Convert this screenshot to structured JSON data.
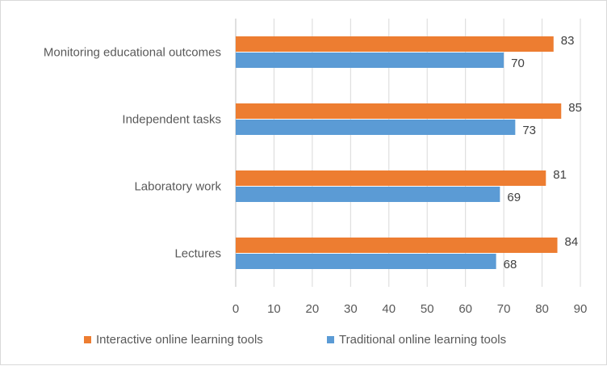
{
  "chart_data": {
    "type": "bar",
    "orientation": "horizontal",
    "title": "",
    "xlabel": "",
    "ylabel": "",
    "categories": [
      "Monitoring educational outcomes",
      "Independent tasks",
      "Laboratory work",
      "Lectures"
    ],
    "series": [
      {
        "name": "Interactive online learning tools",
        "color": "#ed7d31",
        "values": [
          83,
          85,
          81,
          84
        ]
      },
      {
        "name": "Traditional online learning tools",
        "color": "#5b9bd5",
        "values": [
          70,
          73,
          69,
          68
        ]
      }
    ],
    "xlim": [
      0,
      90
    ],
    "ticks": [
      0,
      10,
      20,
      30,
      40,
      50,
      60,
      70,
      80,
      90
    ],
    "grid": true,
    "legend_position": "bottom",
    "data_labels": true
  }
}
